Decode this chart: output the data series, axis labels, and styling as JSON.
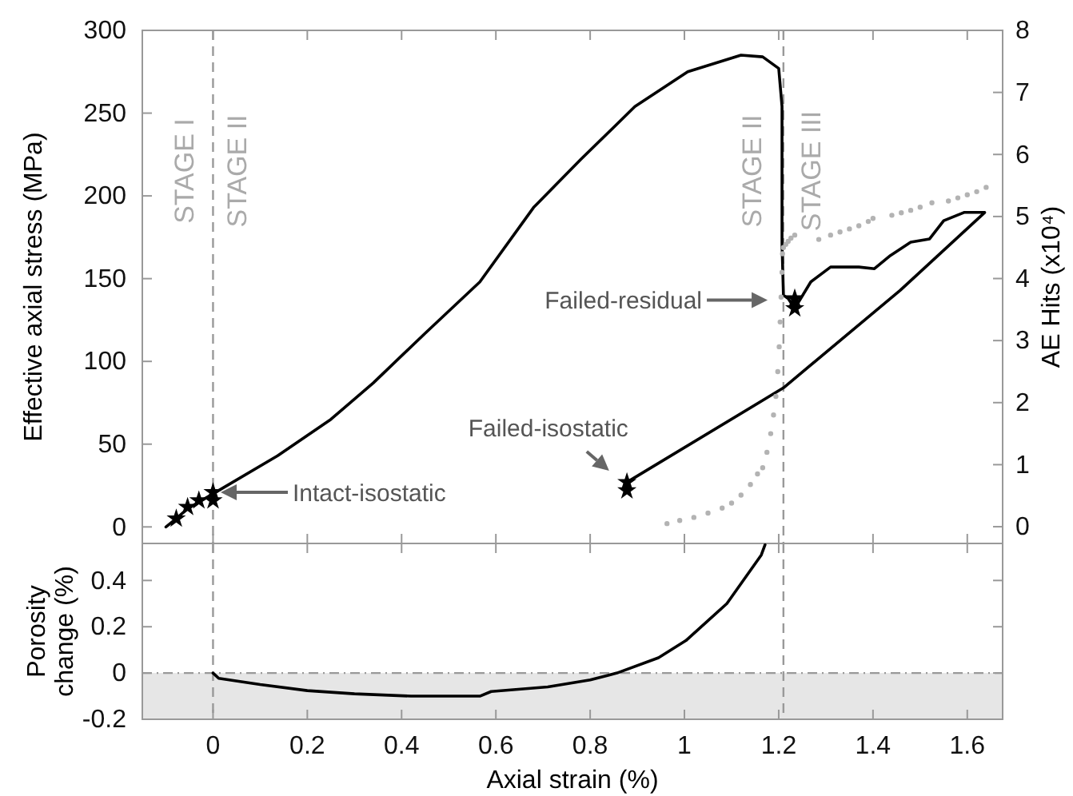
{
  "chart_data": [
    {
      "type": "line",
      "ylabel": "Effective axial stress (MPa)",
      "y2label": "AE Hits (x10⁴)",
      "xlim": [
        -0.15,
        1.675
      ],
      "xticks": [
        0,
        0.2,
        0.4,
        0.6,
        0.8,
        1,
        1.2,
        1.4,
        1.6
      ],
      "ylim": [
        -10,
        300
      ],
      "yticks": [
        0,
        50,
        100,
        150,
        200,
        250,
        300
      ],
      "y2lim": [
        -0.27,
        8
      ],
      "y2ticks": [
        0,
        1,
        2,
        3,
        4,
        5,
        6,
        7,
        8
      ],
      "tick_labels": "y",
      "series": [
        {
          "color": "#000000",
          "line_style": "solid",
          "x": [
            -0.1,
            -0.078,
            -0.054,
            -0.03,
            0,
            0.137,
            0.25,
            0.34,
            0.45,
            0.566,
            0.68,
            0.78,
            0.895,
            1.007,
            1.12,
            1.166,
            1.2,
            1.207,
            1.207,
            1.21,
            1.22,
            1.234,
            1.268,
            1.31,
            1.37,
            1.403,
            1.437,
            1.48,
            1.52,
            1.55,
            1.593,
            1.637,
            1.458,
            1.21,
            0.878
          ],
          "values": [
            0,
            5,
            11,
            15,
            20,
            43,
            65,
            87,
            117,
            148,
            193,
            222,
            254,
            275,
            285,
            284,
            277,
            254,
            171,
            140,
            138,
            132,
            148,
            157,
            157,
            156,
            164,
            172,
            174,
            185,
            190,
            190,
            143,
            84,
            27
          ]
        },
        {
          "type": "scatter",
          "marker": "star",
          "color": "#000000",
          "x": [
            -0.078,
            -0.054,
            -0.03,
            0,
            0,
            0.878,
            0.878,
            1.234,
            1.234
          ],
          "values": [
            5,
            12,
            16,
            21,
            16,
            27,
            22,
            138,
            132
          ]
        },
        {
          "type": "scatter",
          "marker": "circle",
          "axis": "y2",
          "color": "#b3b3b3",
          "x": [
            0.963,
            0.99,
            1.02,
            1.05,
            1.08,
            1.1,
            1.12,
            1.14,
            1.155,
            1.166,
            1.175,
            1.183,
            1.189,
            1.194,
            1.198,
            1.201,
            1.203,
            1.205,
            1.207,
            1.208,
            1.21,
            1.215,
            1.22,
            1.226,
            1.234,
            1.285,
            1.31,
            1.33,
            1.35,
            1.37,
            1.39,
            1.4,
            1.44,
            1.46,
            1.48,
            1.5,
            1.525,
            1.56,
            1.58,
            1.6,
            1.62,
            1.64
          ],
          "values": [
            0.05,
            0.1,
            0.15,
            0.22,
            0.3,
            0.38,
            0.51,
            0.68,
            0.85,
            0.95,
            1.2,
            1.5,
            1.8,
            2.1,
            2.5,
            2.9,
            3.3,
            3.7,
            4.1,
            4.4,
            4.5,
            4.55,
            4.6,
            4.65,
            4.7,
            4.63,
            4.7,
            4.75,
            4.8,
            4.85,
            4.92,
            4.97,
            5.02,
            5.06,
            5.1,
            5.15,
            5.22,
            5.25,
            5.3,
            5.35,
            5.4,
            5.47
          ]
        }
      ],
      "ref_lines": [
        {
          "axis": "x",
          "value": 0,
          "color": "#999999",
          "line_style": "dashed"
        },
        {
          "axis": "x",
          "value": 1.21,
          "color": "#999999",
          "line_style": "dashed"
        }
      ],
      "annotations": [
        "STAGE I",
        "STAGE II",
        "STAGE II",
        "STAGE III",
        "Intact-isostatic",
        {
          "text": "Failed-isostatic",
          "x": 0.847,
          "y": 32
        },
        {
          "text": "Failed-residual",
          "x": 1.19,
          "y": 137
        }
      ]
    },
    {
      "type": "line",
      "xlabel": "Axial strain (%)",
      "ylabel": "Porosity change (%)",
      "xlim": [
        -0.15,
        1.675
      ],
      "xticks": [
        0,
        0.2,
        0.4,
        0.6,
        0.8,
        1,
        1.2,
        1.4,
        1.6
      ],
      "ylim": [
        -0.2,
        0.56
      ],
      "yticks": [
        -0.2,
        0,
        0.2,
        0.4
      ],
      "series": [
        {
          "color": "#000000",
          "line_style": "solid",
          "x": [
            0,
            0.012,
            0.1,
            0.2,
            0.3,
            0.42,
            0.566,
            0.59,
            0.71,
            0.8,
            0.857,
            0.945,
            1.003,
            1.09,
            1.163,
            1.171
          ],
          "values": [
            0,
            -0.023,
            -0.05,
            -0.076,
            -0.09,
            -0.1,
            -0.1,
            -0.08,
            -0.06,
            -0.03,
            0,
            0.066,
            0.14,
            0.3,
            0.51,
            0.554
          ]
        }
      ],
      "bands": [
        {
          "axis": "y",
          "from": -0.2,
          "to": 0,
          "color": "#e6e6e6"
        }
      ],
      "ref_lines": [
        {
          "axis": "y",
          "value": 0,
          "color": "#999999",
          "line_style": "dotted"
        },
        {
          "axis": "x",
          "value": 0,
          "color": "#999999",
          "line_style": "dashed"
        },
        {
          "axis": "x",
          "value": 1.21,
          "color": "#999999",
          "line_style": "dashed"
        }
      ]
    }
  ]
}
